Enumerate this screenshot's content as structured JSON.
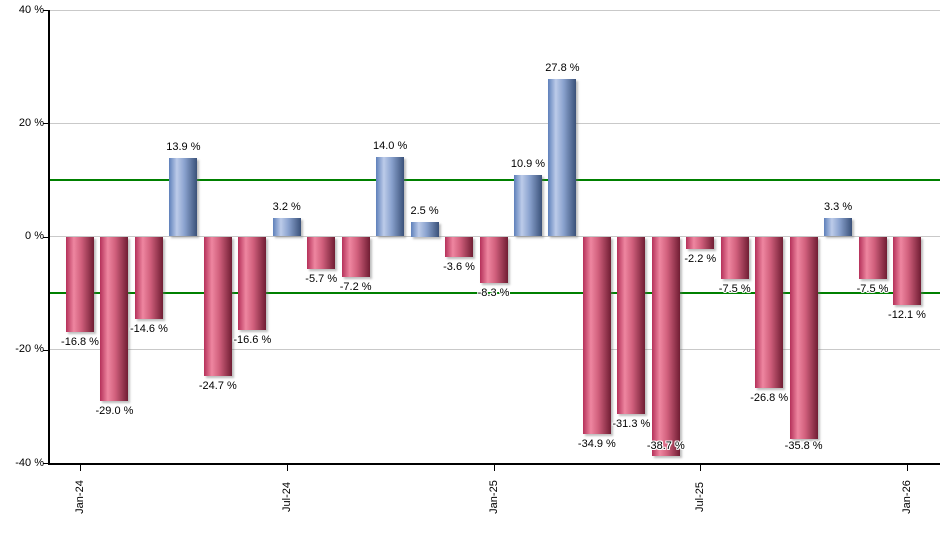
{
  "chart_data": {
    "type": "bar",
    "title": "",
    "y_axis": {
      "range": [
        -40,
        40
      ],
      "ticks": [
        {
          "label": "40 %",
          "value": 40
        },
        {
          "label": "20 %",
          "value": 20
        },
        {
          "label": "0 %",
          "value": 0
        },
        {
          "label": "-20 %",
          "value": -20
        },
        {
          "label": "-40 %",
          "value": -40
        }
      ]
    },
    "x_axis": {
      "month_count": 25,
      "ticks": [
        {
          "label": "Jan-24",
          "month_index": 0
        },
        {
          "label": "Jul-24",
          "month_index": 6
        },
        {
          "label": "Jan-25",
          "month_index": 12
        },
        {
          "label": "Jul-25",
          "month_index": 18
        },
        {
          "label": "Jan-26",
          "month_index": 24
        }
      ]
    },
    "reference_lines": {
      "values": [
        10,
        -10
      ],
      "color": "#008000"
    },
    "series": [
      {
        "month_index": 0,
        "value": -16.8,
        "label": "-16.8 %"
      },
      {
        "month_index": 1,
        "value": -29.0,
        "label": "-29.0 %"
      },
      {
        "month_index": 2,
        "value": -14.6,
        "label": "-14.6 %"
      },
      {
        "month_index": 3,
        "value": 13.9,
        "label": "13.9 %"
      },
      {
        "month_index": 4,
        "value": -24.7,
        "label": "-24.7 %"
      },
      {
        "month_index": 5,
        "value": -16.6,
        "label": "-16.6 %"
      },
      {
        "month_index": 6,
        "value": 3.2,
        "label": "3.2 %"
      },
      {
        "month_index": 7,
        "value": -5.7,
        "label": "-5.7 %"
      },
      {
        "month_index": 8,
        "value": -7.2,
        "label": "-7.2 %"
      },
      {
        "month_index": 9,
        "value": 14.0,
        "label": "14.0 %"
      },
      {
        "month_index": 10,
        "value": 2.5,
        "label": "2.5 %"
      },
      {
        "month_index": 11,
        "value": -3.6,
        "label": "-3.6 %"
      },
      {
        "month_index": 12,
        "value": -8.3,
        "label": "-8.3 %"
      },
      {
        "month_index": 13,
        "value": 10.9,
        "label": "10.9 %"
      },
      {
        "month_index": 14,
        "value": 27.8,
        "label": "27.8 %"
      },
      {
        "month_index": 15,
        "value": -34.9,
        "label": "-34.9 %"
      },
      {
        "month_index": 16,
        "value": -31.3,
        "label": "-31.3 %"
      },
      {
        "month_index": 17,
        "value": -38.7,
        "label": "-38.7 %"
      },
      {
        "month_index": 18,
        "value": -2.2,
        "label": "-2.2 %"
      },
      {
        "month_index": 19,
        "value": -7.5,
        "label": "-7.5 %"
      },
      {
        "month_index": 20,
        "value": -26.8,
        "label": "-26.8 %"
      },
      {
        "month_index": 21,
        "value": -35.8,
        "label": "-35.8 %"
      },
      {
        "month_index": 22,
        "value": 3.3,
        "label": "3.3 %"
      },
      {
        "month_index": 23,
        "value": -7.5,
        "label": "-7.5 %"
      },
      {
        "month_index": 24,
        "value": -12.1,
        "label": "-12.1 %"
      }
    ],
    "colors": {
      "positive_bar_gradient": [
        "#5e80ba",
        "#bccbe9",
        "#3a5179"
      ],
      "negative_bar_gradient": [
        "#b5315a",
        "#ee86a0",
        "#701d33"
      ],
      "gridline": "#c9c9c9",
      "reference_line": "#008000",
      "axis": "#000000",
      "label_text": "#000000",
      "background": "#ffffff"
    }
  }
}
